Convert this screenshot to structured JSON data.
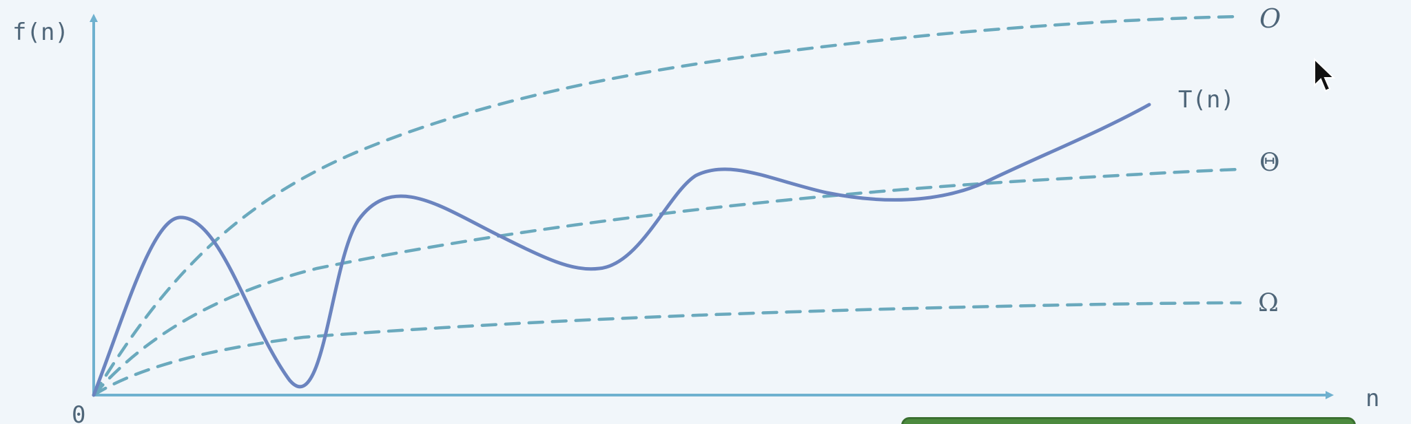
{
  "diagram": {
    "y_axis_label": "f(n)",
    "x_axis_label": "n",
    "origin_label": "0",
    "curves": [
      {
        "label": "O"
      },
      {
        "label": "Θ"
      },
      {
        "label": "Ω"
      },
      {
        "label": "T(n)"
      }
    ]
  },
  "colors": {
    "axis": "#6fb1cf",
    "bound_curves": "#6aa9bd",
    "t_curve": "#6b84bf",
    "label_text": "#4e6578",
    "background": "#f1f6fa"
  },
  "icons": {
    "cursor": "arrow-pointer-icon"
  }
}
